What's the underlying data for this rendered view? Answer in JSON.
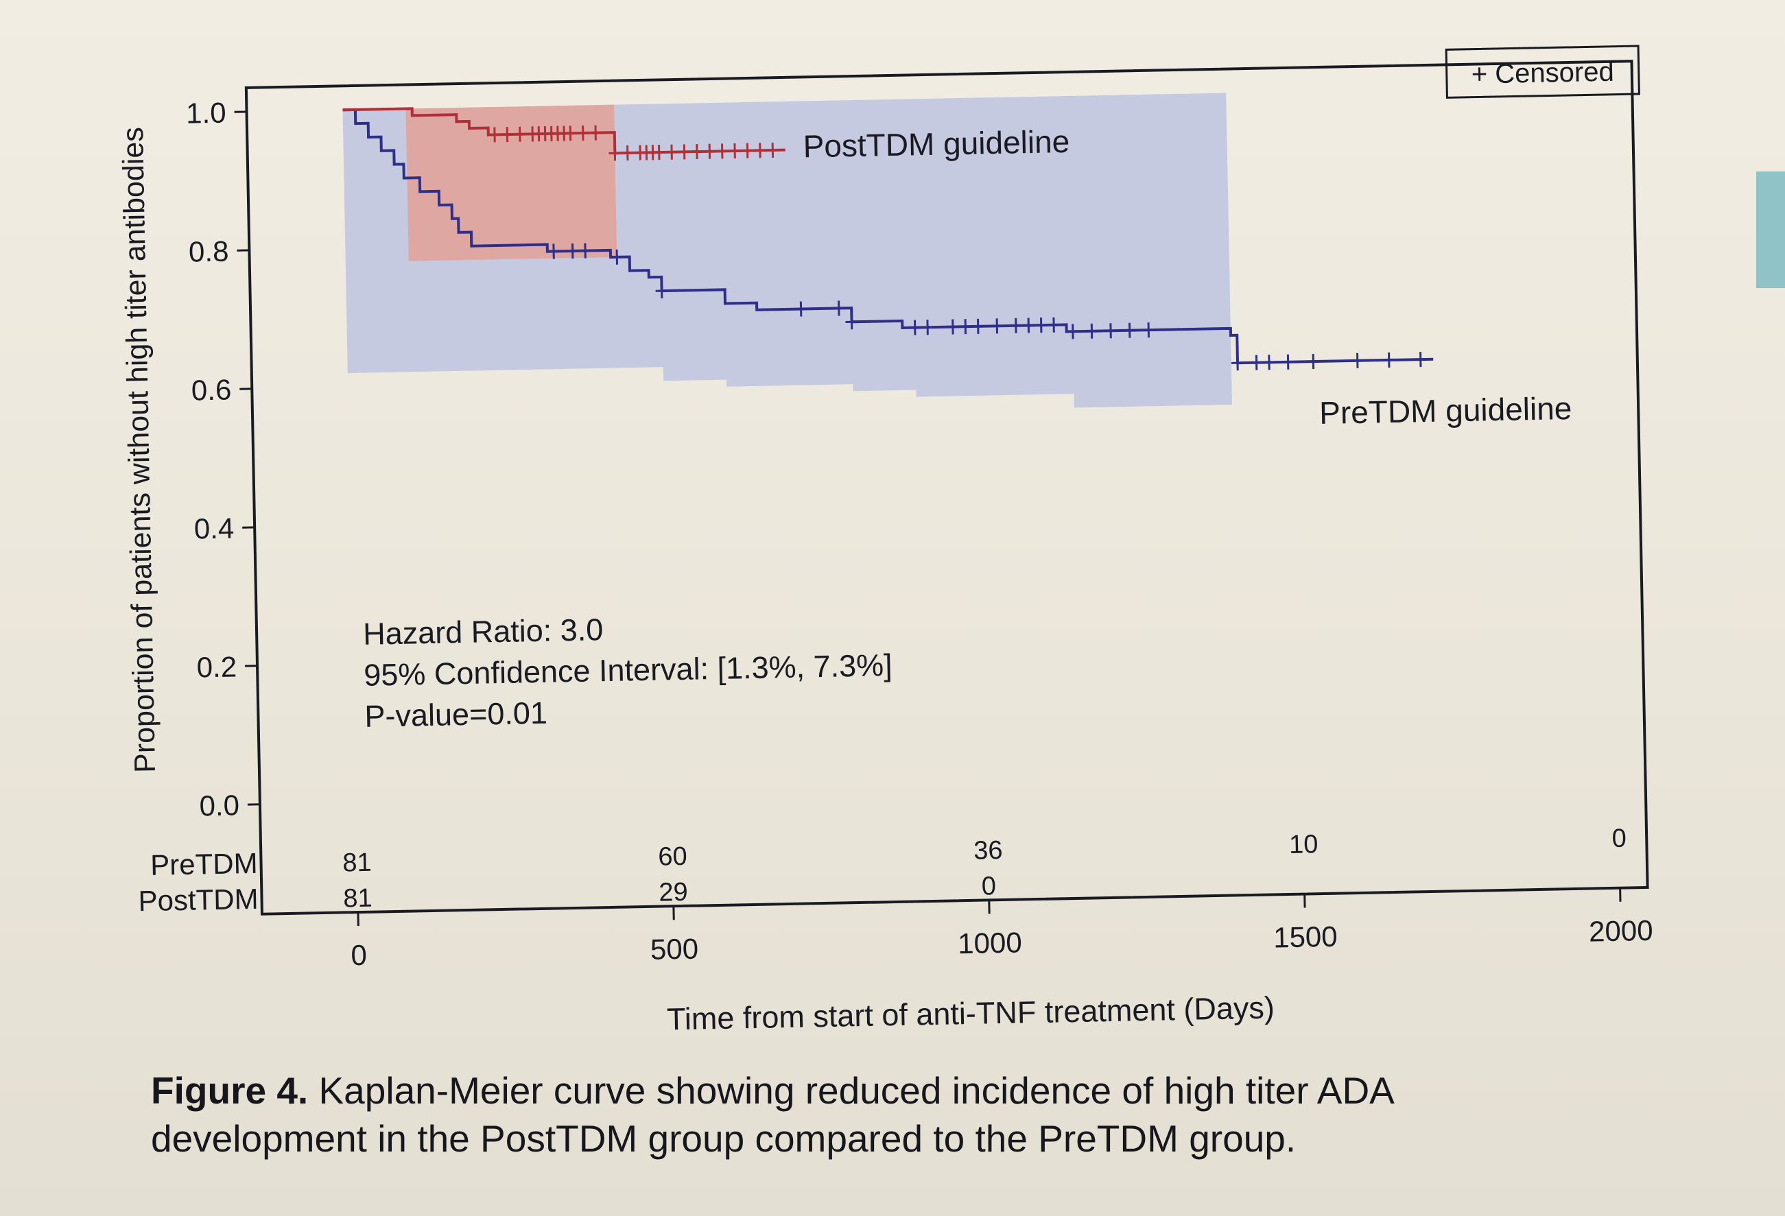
{
  "chart_data": {
    "type": "line",
    "subtype": "kaplan-meier",
    "xlabel": "Time from start of anti-TNF treatment (Days)",
    "ylabel": "Proportion of patients without high titer antibodies",
    "xlim": [
      0,
      2000
    ],
    "ylim": [
      0,
      1.0
    ],
    "x_ticks": [
      "0",
      "500",
      "1000",
      "1500",
      "2000"
    ],
    "y_ticks": [
      "0.0",
      "0.2",
      "0.4",
      "0.6",
      "0.8",
      "1.0"
    ],
    "legend": {
      "label": "+ Censored",
      "position": "top-right"
    },
    "annotation": {
      "line1": "Hazard Ratio: 3.0",
      "line2": "95% Confidence Interval: [1.3%, 7.3%]",
      "line3": "P-value=0.01"
    },
    "series": [
      {
        "name": "PreTDM guideline",
        "color": "#2f2f8a",
        "band_color": "#b8bfe0",
        "steps": [
          [
            0,
            1.0
          ],
          [
            20,
            0.98
          ],
          [
            40,
            0.96
          ],
          [
            60,
            0.94
          ],
          [
            80,
            0.92
          ],
          [
            95,
            0.9
          ],
          [
            120,
            0.88
          ],
          [
            150,
            0.86
          ],
          [
            170,
            0.84
          ],
          [
            180,
            0.82
          ],
          [
            200,
            0.8
          ],
          [
            300,
            0.8
          ],
          [
            320,
            0.79
          ],
          [
            420,
            0.78
          ],
          [
            450,
            0.76
          ],
          [
            480,
            0.75
          ],
          [
            500,
            0.73
          ],
          [
            600,
            0.71
          ],
          [
            650,
            0.7
          ],
          [
            800,
            0.68
          ],
          [
            880,
            0.67
          ],
          [
            1140,
            0.66
          ],
          [
            1400,
            0.65
          ],
          [
            1410,
            0.61
          ],
          [
            1720,
            0.61
          ]
        ],
        "ci_upper": [
          [
            0,
            1.0
          ],
          [
            1400,
            1.0
          ]
        ],
        "ci_lower": [
          [
            0,
            0.62
          ],
          [
            500,
            0.6
          ],
          [
            600,
            0.59
          ],
          [
            800,
            0.58
          ],
          [
            900,
            0.57
          ],
          [
            1150,
            0.55
          ],
          [
            1400,
            0.55
          ]
        ],
        "censored_x": [
          330,
          360,
          380,
          430,
          500,
          720,
          780,
          800,
          900,
          920,
          960,
          980,
          1000,
          1030,
          1060,
          1080,
          1100,
          1120,
          1150,
          1180,
          1210,
          1240,
          1270,
          1410,
          1440,
          1460,
          1490,
          1530,
          1600,
          1650,
          1700
        ],
        "at_risk_label": "PreTDM",
        "at_risk": [
          "81",
          "60",
          "36",
          "10",
          "0"
        ]
      },
      {
        "name": "PostTDM guideline",
        "color": "#b0303a",
        "band_color": "#e3a196",
        "steps": [
          [
            0,
            1.0
          ],
          [
            100,
            1.0
          ],
          [
            110,
            0.99
          ],
          [
            170,
            0.99
          ],
          [
            180,
            0.98
          ],
          [
            200,
            0.97
          ],
          [
            230,
            0.96
          ],
          [
            420,
            0.96
          ],
          [
            430,
            0.93
          ],
          [
            700,
            0.93
          ]
        ],
        "ci_upper": [
          [
            100,
            1.0
          ],
          [
            430,
            1.0
          ]
        ],
        "ci_lower": [
          [
            100,
            0.78
          ],
          [
            430,
            0.78
          ]
        ],
        "censored_x": [
          240,
          260,
          280,
          300,
          310,
          320,
          330,
          340,
          350,
          360,
          380,
          400,
          430,
          450,
          470,
          480,
          490,
          500,
          520,
          540,
          560,
          580,
          600,
          620,
          640,
          660,
          680
        ],
        "at_risk_label": "PostTDM",
        "at_risk": [
          "81",
          "29",
          "0",
          "",
          ""
        ]
      }
    ],
    "at_risk_x": [
      0,
      500,
      1000,
      1500,
      2000
    ]
  },
  "caption": {
    "label": "Figure 4.",
    "text": " Kaplan-Meier curve showing reduced incidence of high titer ADA development in the PostTDM group compared to the PreTDM group."
  }
}
